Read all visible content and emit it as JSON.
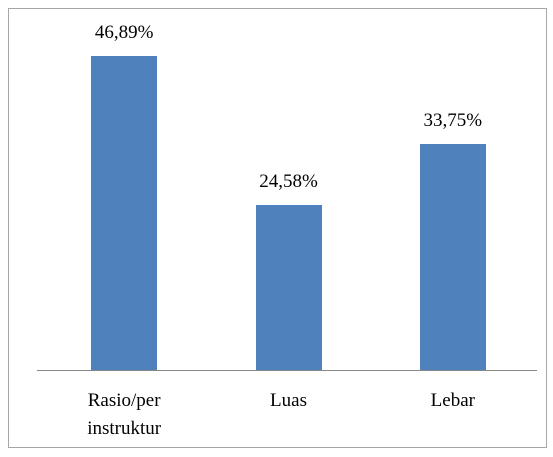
{
  "chart_data": {
    "type": "bar",
    "categories": [
      "Rasio/per instruktur",
      "Luas",
      "Lebar"
    ],
    "values": [
      46.89,
      24.58,
      33.75
    ],
    "value_labels": [
      "46,89%",
      "24,58%",
      "33,75%"
    ],
    "color": "#4f81bd"
  }
}
